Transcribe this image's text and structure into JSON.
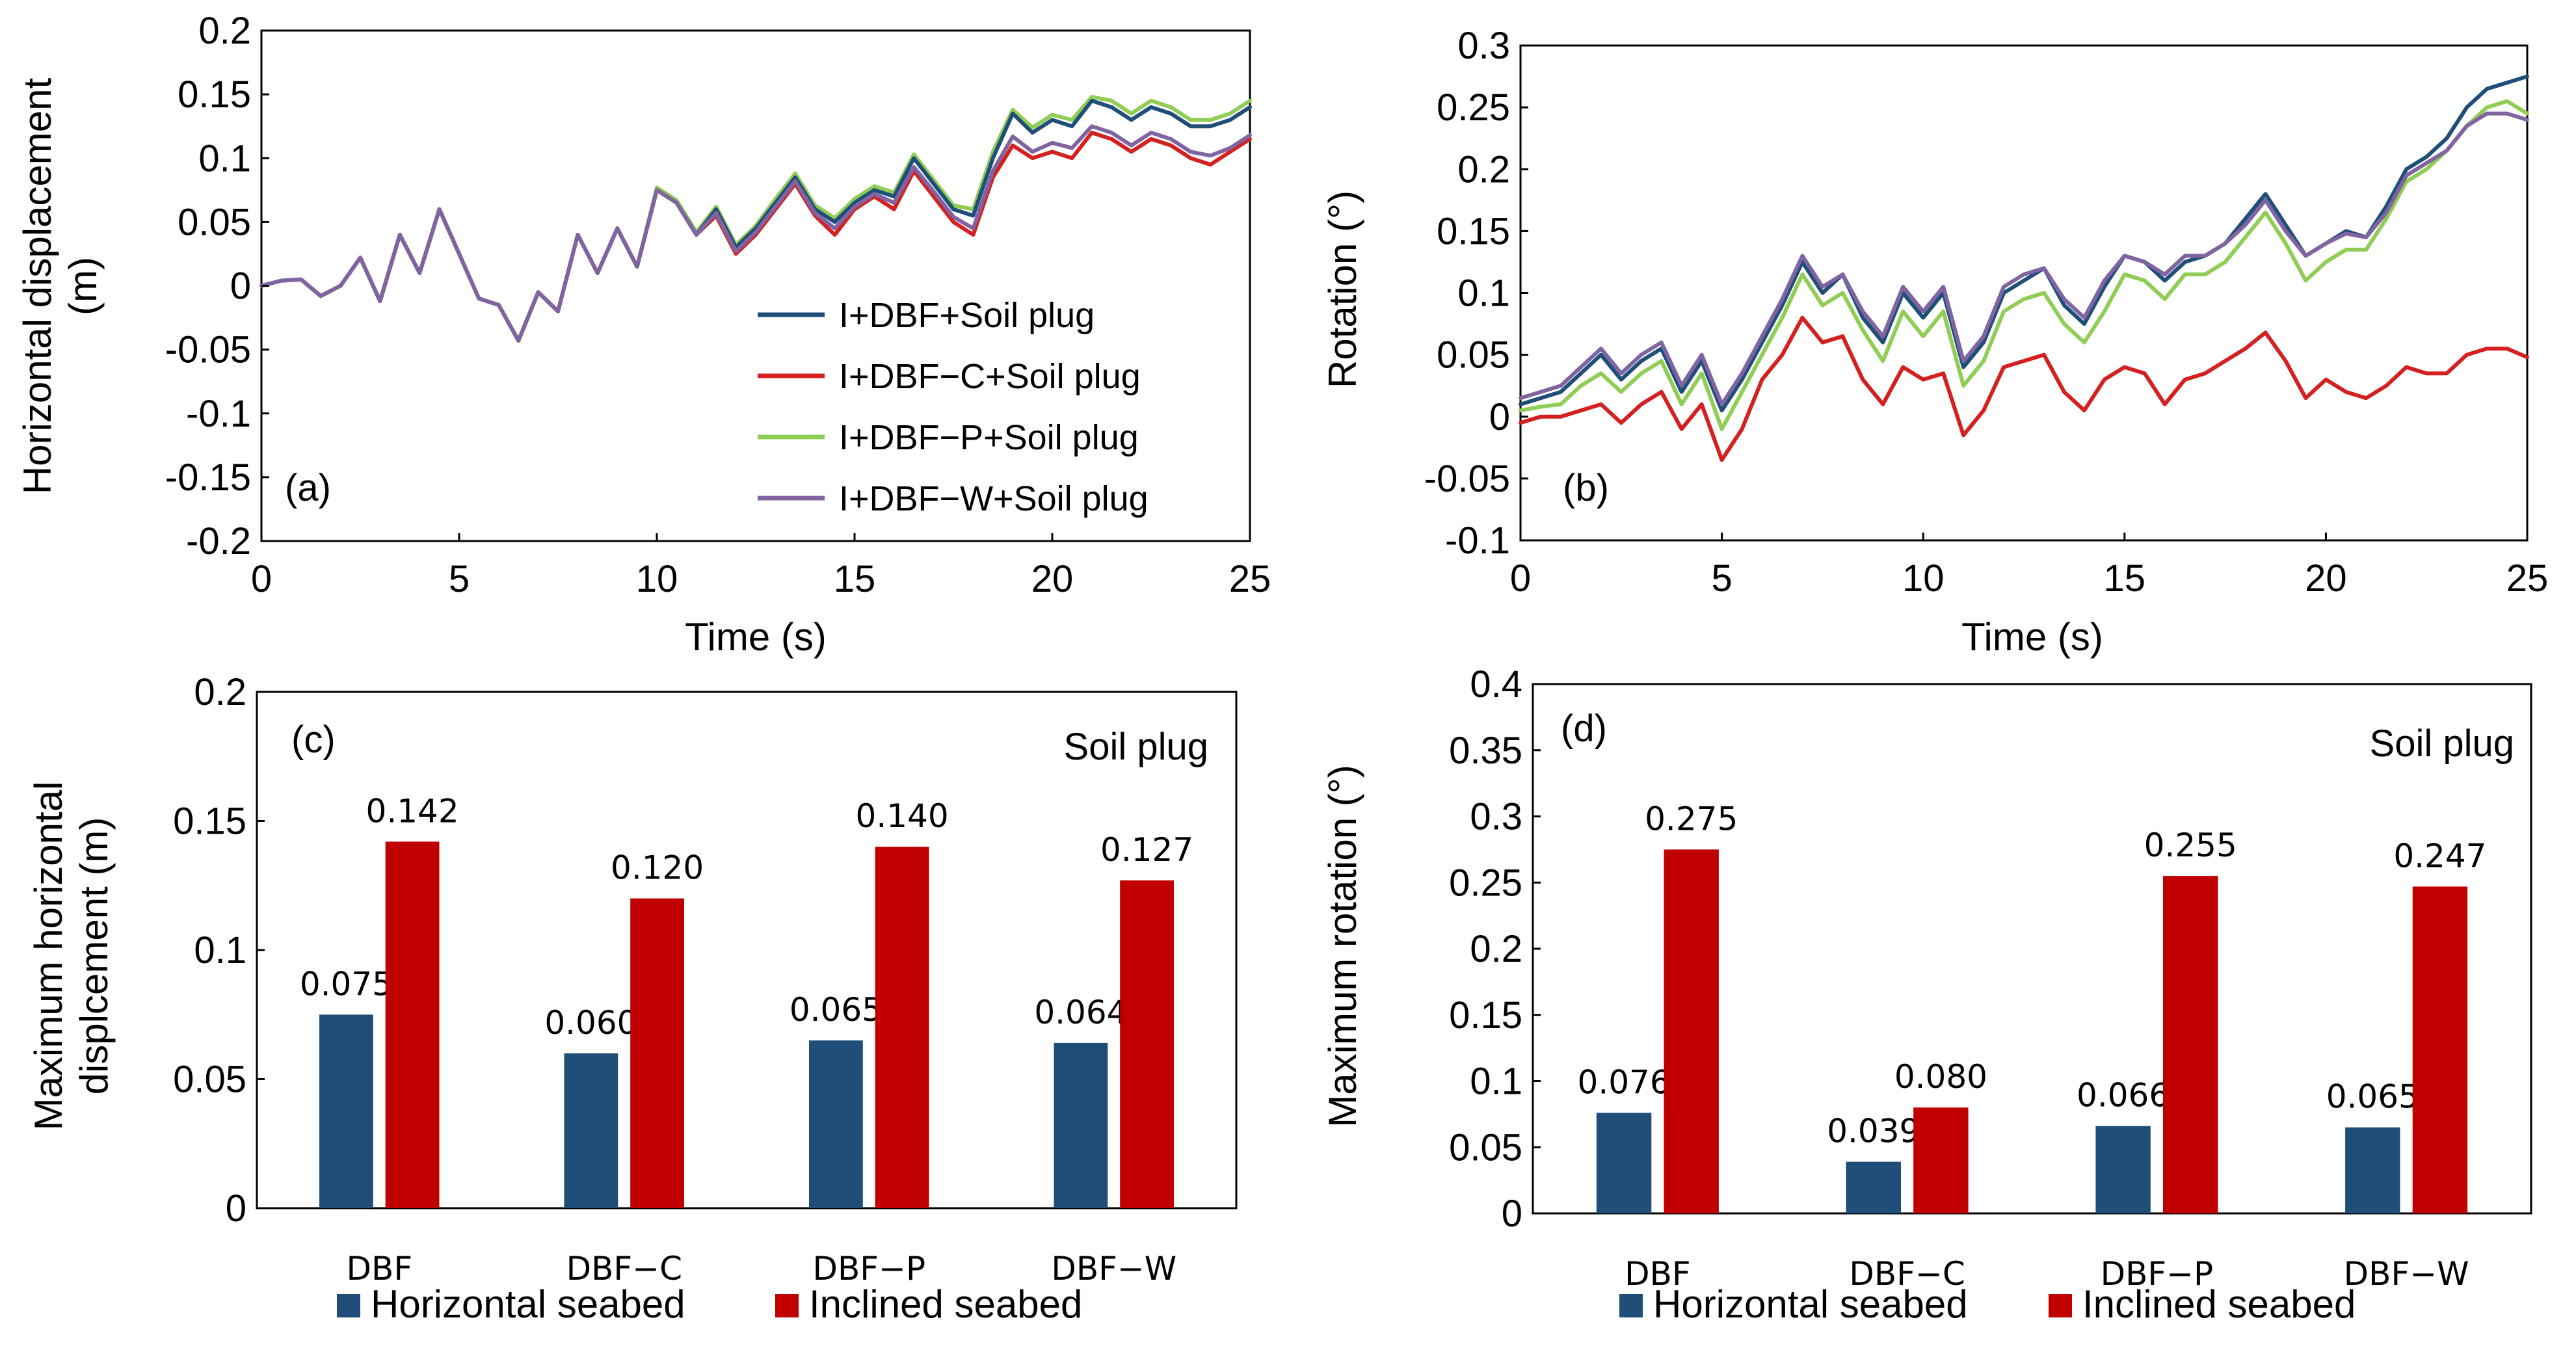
{
  "colors": {
    "dbf": "#1f4e79",
    "dbf_c": "#d42020",
    "dbf_p": "#8fcd55",
    "dbf_w": "#8064a2",
    "horizontal": "#1f4e79",
    "inclined": "#c00000"
  },
  "chart_data": [
    {
      "id": "a",
      "type": "line",
      "panel_label": "(a)",
      "xlabel": "Time (s)",
      "ylabel_lines": [
        "Horizontal displacement",
        "(m)"
      ],
      "xlim": [
        0,
        25
      ],
      "ylim": [
        -0.2,
        0.2
      ],
      "xticks": [
        "0",
        "5",
        "10",
        "15",
        "20",
        "25"
      ],
      "yticks": [
        "-0.2",
        "-0.15",
        "-0.1",
        "-0.05",
        "0",
        "0.05",
        "0.1",
        "0.15",
        "0.2"
      ],
      "legend": [
        "I+DBF+Soil plug",
        "I+DBF−C+Soil plug",
        "I+DBF−P+Soil plug",
        "I+DBF−W+Soil plug"
      ],
      "x": [
        0,
        0.5,
        1,
        1.5,
        2,
        2.5,
        3,
        3.5,
        4,
        4.5,
        5,
        5.5,
        6,
        6.5,
        7,
        7.5,
        8,
        8.5,
        9,
        9.5,
        10,
        10.5,
        11,
        11.5,
        12,
        12.5,
        13,
        13.5,
        14,
        14.5,
        15,
        15.5,
        16,
        16.5,
        17,
        17.5,
        18,
        18.5,
        19,
        19.5,
        20,
        20.5,
        21,
        21.5,
        22,
        22.5,
        23,
        23.5,
        24,
        24.5,
        25
      ],
      "series": [
        {
          "name": "I+DBF+Soil plug",
          "values": [
            0,
            0.004,
            0.005,
            -0.008,
            0,
            0.022,
            -0.012,
            0.04,
            0.01,
            0.06,
            0.025,
            -0.01,
            -0.015,
            -0.043,
            -0.005,
            -0.02,
            0.04,
            0.01,
            0.045,
            0.015,
            0.075,
            0.065,
            0.04,
            0.06,
            0.03,
            0.045,
            0.065,
            0.085,
            0.06,
            0.05,
            0.065,
            0.075,
            0.07,
            0.1,
            0.08,
            0.06,
            0.055,
            0.1,
            0.135,
            0.12,
            0.13,
            0.125,
            0.145,
            0.14,
            0.13,
            0.14,
            0.135,
            0.125,
            0.125,
            0.13,
            0.14
          ]
        },
        {
          "name": "I+DBF−C+Soil plug",
          "values": [
            0,
            0.004,
            0.005,
            -0.008,
            0,
            0.022,
            -0.012,
            0.04,
            0.01,
            0.06,
            0.025,
            -0.01,
            -0.015,
            -0.043,
            -0.005,
            -0.02,
            0.04,
            0.01,
            0.045,
            0.015,
            0.075,
            0.065,
            0.04,
            0.055,
            0.025,
            0.04,
            0.06,
            0.08,
            0.055,
            0.04,
            0.06,
            0.07,
            0.06,
            0.09,
            0.07,
            0.05,
            0.04,
            0.085,
            0.11,
            0.1,
            0.105,
            0.1,
            0.12,
            0.115,
            0.105,
            0.115,
            0.11,
            0.1,
            0.095,
            0.105,
            0.115
          ]
        },
        {
          "name": "I+DBF−P+Soil plug",
          "values": [
            0,
            0.004,
            0.005,
            -0.008,
            0,
            0.022,
            -0.012,
            0.04,
            0.01,
            0.06,
            0.025,
            -0.01,
            -0.015,
            -0.043,
            -0.005,
            -0.02,
            0.04,
            0.01,
            0.045,
            0.015,
            0.077,
            0.067,
            0.042,
            0.062,
            0.032,
            0.047,
            0.068,
            0.088,
            0.063,
            0.053,
            0.068,
            0.078,
            0.073,
            0.103,
            0.083,
            0.063,
            0.06,
            0.105,
            0.138,
            0.124,
            0.134,
            0.13,
            0.148,
            0.145,
            0.135,
            0.145,
            0.14,
            0.13,
            0.13,
            0.135,
            0.145
          ]
        },
        {
          "name": "I+DBF−W+Soil plug",
          "values": [
            0,
            0.004,
            0.005,
            -0.008,
            0,
            0.022,
            -0.012,
            0.04,
            0.01,
            0.06,
            0.025,
            -0.01,
            -0.015,
            -0.043,
            -0.005,
            -0.02,
            0.04,
            0.01,
            0.045,
            0.015,
            0.075,
            0.065,
            0.04,
            0.057,
            0.027,
            0.042,
            0.062,
            0.082,
            0.057,
            0.045,
            0.062,
            0.072,
            0.065,
            0.093,
            0.074,
            0.054,
            0.045,
            0.09,
            0.117,
            0.105,
            0.112,
            0.108,
            0.125,
            0.12,
            0.11,
            0.12,
            0.115,
            0.105,
            0.102,
            0.108,
            0.118
          ]
        }
      ]
    },
    {
      "id": "b",
      "type": "line",
      "panel_label": "(b)",
      "xlabel": "Time (s)",
      "ylabel_lines": [
        "Rotation (°)"
      ],
      "xlim": [
        0,
        25
      ],
      "ylim": [
        -0.1,
        0.3
      ],
      "xticks": [
        "0",
        "5",
        "10",
        "15",
        "20",
        "25"
      ],
      "yticks": [
        "-0.1",
        "-0.05",
        "0",
        "0.05",
        "0.1",
        "0.15",
        "0.2",
        "0.25",
        "0.3"
      ],
      "x": [
        0,
        0.5,
        1,
        1.5,
        2,
        2.5,
        3,
        3.5,
        4,
        4.5,
        5,
        5.5,
        6,
        6.5,
        7,
        7.5,
        8,
        8.5,
        9,
        9.5,
        10,
        10.5,
        11,
        11.5,
        12,
        12.5,
        13,
        13.5,
        14,
        14.5,
        15,
        15.5,
        16,
        16.5,
        17,
        17.5,
        18,
        18.5,
        19,
        19.5,
        20,
        20.5,
        21,
        21.5,
        22,
        22.5,
        23,
        23.5,
        24,
        24.5,
        25
      ],
      "series": [
        {
          "name": "I+DBF+Soil plug",
          "values": [
            0.01,
            0.015,
            0.02,
            0.035,
            0.05,
            0.03,
            0.045,
            0.055,
            0.02,
            0.045,
            0.005,
            0.03,
            0.06,
            0.09,
            0.125,
            0.1,
            0.115,
            0.08,
            0.06,
            0.1,
            0.08,
            0.1,
            0.04,
            0.06,
            0.1,
            0.11,
            0.12,
            0.09,
            0.075,
            0.105,
            0.13,
            0.125,
            0.11,
            0.125,
            0.13,
            0.14,
            0.16,
            0.18,
            0.155,
            0.13,
            0.14,
            0.15,
            0.145,
            0.17,
            0.2,
            0.21,
            0.225,
            0.25,
            0.265,
            0.27,
            0.275
          ]
        },
        {
          "name": "I+DBF−C+Soil plug",
          "values": [
            -0.005,
            0,
            0,
            0.005,
            0.01,
            -0.005,
            0.01,
            0.02,
            -0.01,
            0.01,
            -0.035,
            -0.01,
            0.03,
            0.05,
            0.08,
            0.06,
            0.065,
            0.03,
            0.01,
            0.04,
            0.03,
            0.035,
            -0.015,
            0.005,
            0.04,
            0.045,
            0.05,
            0.02,
            0.005,
            0.03,
            0.04,
            0.035,
            0.01,
            0.03,
            0.035,
            0.045,
            0.055,
            0.068,
            0.045,
            0.015,
            0.03,
            0.02,
            0.015,
            0.025,
            0.04,
            0.035,
            0.035,
            0.05,
            0.055,
            0.055,
            0.048
          ]
        },
        {
          "name": "I+DBF−P+Soil plug",
          "values": [
            0.005,
            0.008,
            0.01,
            0.025,
            0.035,
            0.02,
            0.035,
            0.045,
            0.01,
            0.035,
            -0.01,
            0.02,
            0.05,
            0.08,
            0.115,
            0.09,
            0.1,
            0.07,
            0.045,
            0.085,
            0.065,
            0.085,
            0.025,
            0.045,
            0.085,
            0.095,
            0.1,
            0.075,
            0.06,
            0.085,
            0.115,
            0.11,
            0.095,
            0.115,
            0.115,
            0.125,
            0.145,
            0.165,
            0.14,
            0.11,
            0.125,
            0.135,
            0.135,
            0.16,
            0.19,
            0.2,
            0.215,
            0.235,
            0.25,
            0.255,
            0.245
          ]
        },
        {
          "name": "I+DBF−W+Soil plug",
          "values": [
            0.015,
            0.02,
            0.025,
            0.04,
            0.055,
            0.035,
            0.05,
            0.06,
            0.025,
            0.05,
            0.01,
            0.035,
            0.065,
            0.095,
            0.13,
            0.105,
            0.115,
            0.085,
            0.065,
            0.105,
            0.085,
            0.105,
            0.045,
            0.065,
            0.105,
            0.115,
            0.12,
            0.095,
            0.08,
            0.11,
            0.13,
            0.125,
            0.115,
            0.13,
            0.13,
            0.14,
            0.155,
            0.175,
            0.15,
            0.13,
            0.14,
            0.148,
            0.145,
            0.165,
            0.195,
            0.205,
            0.215,
            0.235,
            0.245,
            0.245,
            0.24
          ]
        }
      ]
    },
    {
      "id": "c",
      "type": "bar",
      "panel_label": "(c)",
      "annotation": "Soil plug",
      "ylabel_lines": [
        "Maximum horizontal",
        "displcement (m)"
      ],
      "ylim": [
        0,
        0.2
      ],
      "yticks": [
        "0",
        "0.05",
        "0.1",
        "0.15",
        "0.2"
      ],
      "categories": [
        "DBF",
        "DBF−C",
        "DBF−P",
        "DBF−W"
      ],
      "legend": [
        "Horizontal seabed",
        "Inclined seabed"
      ],
      "series": [
        {
          "name": "Horizontal seabed",
          "values": [
            0.075,
            0.06,
            0.065,
            0.064
          ],
          "labels": [
            "0.075",
            "0.060",
            "0.065",
            "0.064"
          ]
        },
        {
          "name": "Inclined seabed",
          "values": [
            0.142,
            0.12,
            0.14,
            0.127
          ],
          "labels": [
            "0.142",
            "0.120",
            "0.140",
            "0.127"
          ]
        }
      ]
    },
    {
      "id": "d",
      "type": "bar",
      "panel_label": "(d)",
      "annotation": "Soil plug",
      "ylabel_lines": [
        "Maximum rotation (°)"
      ],
      "ylim": [
        0,
        0.4
      ],
      "yticks": [
        "0",
        "0.05",
        "0.1",
        "0.15",
        "0.2",
        "0.25",
        "0.3",
        "0.35",
        "0.4"
      ],
      "categories": [
        "DBF",
        "DBF−C",
        "DBF−P",
        "DBF−W"
      ],
      "legend": [
        "Horizontal seabed",
        "Inclined seabed"
      ],
      "series": [
        {
          "name": "Horizontal seabed",
          "values": [
            0.076,
            0.039,
            0.066,
            0.065
          ],
          "labels": [
            "0.076",
            "0.039",
            "0.066",
            "0.065"
          ]
        },
        {
          "name": "Inclined seabed",
          "values": [
            0.275,
            0.08,
            0.255,
            0.247
          ],
          "labels": [
            "0.275",
            "0.080",
            "0.255",
            "0.247"
          ]
        }
      ]
    }
  ]
}
